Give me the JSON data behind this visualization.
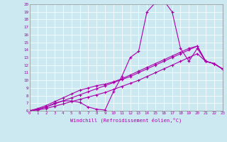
{
  "xlabel": "Windchill (Refroidissement éolien,°C)",
  "background_color": "#cce8f0",
  "line_color": "#aa00aa",
  "x": [
    0,
    1,
    2,
    3,
    4,
    5,
    6,
    7,
    8,
    9,
    10,
    11,
    12,
    13,
    14,
    15,
    16,
    17,
    18,
    19,
    20,
    21,
    22,
    23
  ],
  "line1": [
    6.0,
    6.2,
    6.5,
    7.0,
    7.3,
    7.3,
    7.1,
    6.5,
    6.2,
    6.1,
    8.5,
    10.5,
    13.0,
    13.8,
    19.0,
    20.2,
    20.5,
    19.0,
    14.2,
    12.5,
    14.2,
    12.5,
    12.2,
    11.5
  ],
  "line2": [
    6.0,
    6.1,
    6.3,
    6.6,
    6.9,
    7.2,
    7.5,
    7.8,
    8.1,
    8.4,
    8.8,
    9.2,
    9.6,
    10.0,
    10.5,
    11.0,
    11.5,
    12.0,
    12.5,
    13.0,
    13.5,
    12.5,
    12.2,
    11.5
  ],
  "line3": [
    6.0,
    6.2,
    6.5,
    6.9,
    7.3,
    7.7,
    8.1,
    8.5,
    8.9,
    9.3,
    9.7,
    10.1,
    10.5,
    11.0,
    11.5,
    12.0,
    12.5,
    13.0,
    13.5,
    14.0,
    14.5,
    12.5,
    12.2,
    11.5
  ],
  "line4": [
    6.0,
    6.3,
    6.7,
    7.2,
    7.7,
    8.2,
    8.7,
    9.0,
    9.3,
    9.5,
    9.8,
    10.2,
    10.7,
    11.2,
    11.7,
    12.2,
    12.7,
    13.2,
    13.7,
    14.2,
    14.5,
    12.5,
    12.2,
    11.5
  ],
  "ylim": [
    6,
    20
  ],
  "xlim": [
    0,
    23
  ],
  "yticks": [
    6,
    7,
    8,
    9,
    10,
    11,
    12,
    13,
    14,
    15,
    16,
    17,
    18,
    19,
    20
  ],
  "xticks": [
    0,
    1,
    2,
    3,
    4,
    5,
    6,
    7,
    8,
    9,
    10,
    11,
    12,
    13,
    14,
    15,
    16,
    17,
    18,
    19,
    20,
    21,
    22,
    23
  ]
}
